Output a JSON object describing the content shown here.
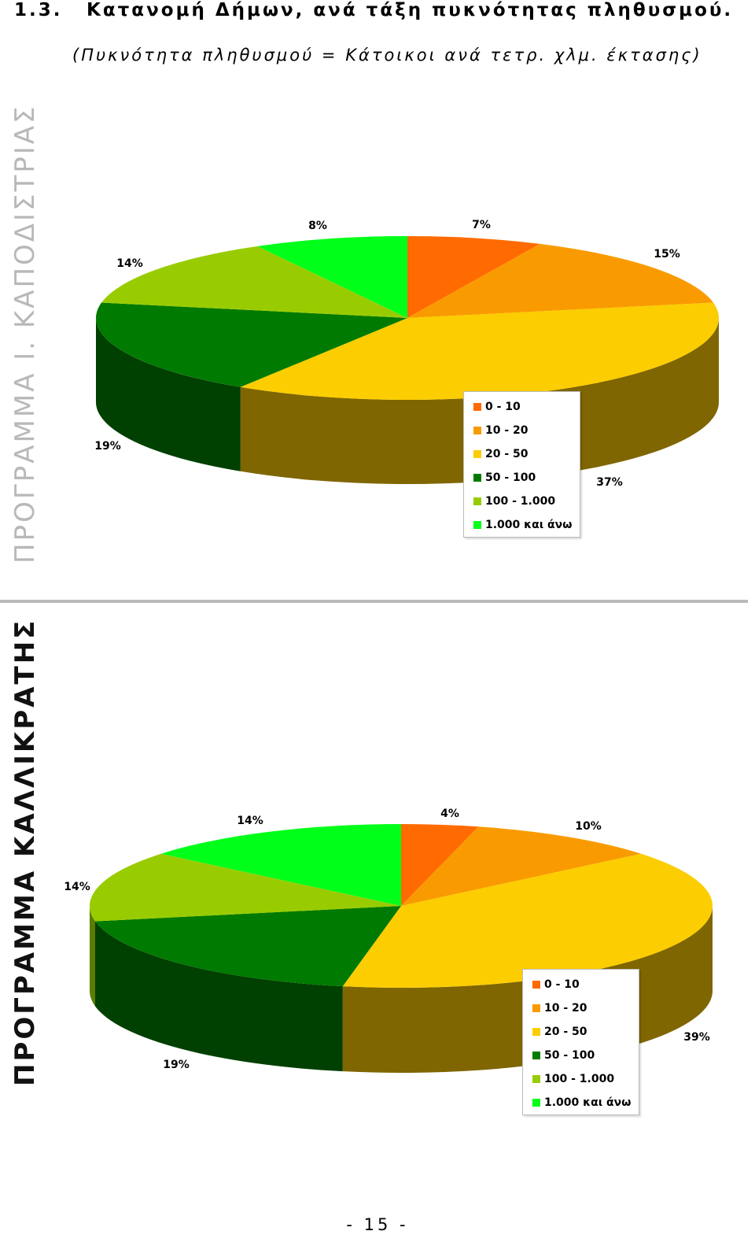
{
  "page": {
    "section_number": "1.3.",
    "section_title": "Κατανομή Δήμων, ανά τάξη πυκνότητας πληθυσμού.",
    "subtitle": "(Πυκνότητα πληθυσμού = Κάτοικοι ανά τετρ. χλμ. έκτασης)",
    "page_number": "- 15 -"
  },
  "colors": {
    "top": [
      "#ff6b00",
      "#f99b00",
      "#fccd00",
      "#007a00",
      "#99cc00",
      "#00ff19"
    ],
    "side": [
      "#a84500",
      "#a86a00",
      "#7f6600",
      "#004000",
      "#5b7d00",
      "#009a10"
    ]
  },
  "chart_data": [
    {
      "type": "pie",
      "title": "ΠΡΟΓΡΑΜΜΑ Ι. ΚΑΠΟΔΙΣΤΡΙΑΣ",
      "categories": [
        "0 - 10",
        "10 - 20",
        "20 - 50",
        "50 - 100",
        "100 - 1.000",
        "1.000 και άνω"
      ],
      "values": [
        7,
        15,
        37,
        19,
        14,
        8
      ],
      "labels": [
        "7%",
        "15%",
        "37%",
        "19%",
        "14%",
        "8%"
      ],
      "style": "3d",
      "legend": "inside-bottom"
    },
    {
      "type": "pie",
      "title": "ΠΡΟΓΡΑΜΜΑ ΚΑΛΛΙΚΡΑΤΗΣ",
      "categories": [
        "0 - 10",
        "10 - 20",
        "20 - 50",
        "50 - 100",
        "100 - 1.000",
        "1.000 και άνω"
      ],
      "values": [
        4,
        10,
        39,
        19,
        14,
        14
      ],
      "labels": [
        "4%",
        "10%",
        "39%",
        "19%",
        "14%",
        "14%"
      ],
      "style": "3d",
      "legend": "inside-bottom-right"
    }
  ]
}
